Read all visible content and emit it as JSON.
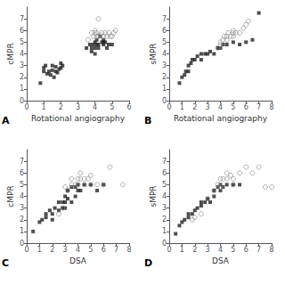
{
  "chart_data": [
    {
      "type": "scatter",
      "xlabel": "Rotational angiography",
      "ylabel": "cMPR",
      "annotation": "A",
      "xlim": [
        0,
        6
      ],
      "ylim": [
        0,
        8
      ],
      "xticks": [
        0,
        1,
        2,
        3,
        4,
        5,
        6
      ],
      "yticks": [
        0,
        1,
        2,
        3,
        4,
        5,
        6,
        7
      ],
      "series": [
        {
          "color": "#222222",
          "marker": "square",
          "x": [
            0.8,
            1.0,
            1.0,
            1.1,
            1.2,
            1.3,
            1.4,
            1.5,
            1.5,
            1.6,
            1.7,
            1.7,
            1.8,
            1.9,
            2.0,
            2.0,
            2.1,
            3.5,
            3.7,
            3.8,
            3.9,
            4.0,
            4.0,
            4.1,
            4.1,
            4.2,
            4.3,
            4.4,
            4.5,
            4.5,
            4.6,
            4.7,
            4.8,
            5.0,
            3.8,
            4.0,
            4.2,
            4.5
          ],
          "values": [
            1.5,
            2.5,
            2.8,
            3.0,
            2.3,
            2.5,
            2.2,
            2.6,
            3.0,
            2.0,
            2.5,
            2.9,
            2.4,
            2.7,
            2.8,
            3.2,
            3.0,
            4.5,
            4.8,
            4.5,
            4.8,
            5.0,
            4.5,
            5.2,
            4.8,
            4.8,
            5.5,
            5.0,
            5.2,
            4.8,
            5.0,
            4.5,
            4.8,
            4.8,
            4.2,
            4.0,
            4.5,
            5.0
          ]
        },
        {
          "color": "#888888",
          "marker": "open_circle",
          "x": [
            3.6,
            3.8,
            3.9,
            4.0,
            4.0,
            4.1,
            4.1,
            4.2,
            4.3,
            4.4,
            4.5,
            4.6,
            4.7,
            4.8,
            4.9,
            5.0,
            5.1,
            5.2,
            4.2
          ],
          "values": [
            5.2,
            5.8,
            5.5,
            5.8,
            6.0,
            5.5,
            5.8,
            5.5,
            5.6,
            5.8,
            5.5,
            5.8,
            5.5,
            5.8,
            5.5,
            5.5,
            5.8,
            6.0,
            7.0
          ]
        }
      ]
    },
    {
      "type": "scatter",
      "xlabel": "Rotational angiography",
      "ylabel": "sMPR",
      "annotation": "B",
      "xlim": [
        0,
        8
      ],
      "ylim": [
        0,
        8
      ],
      "xticks": [
        0,
        1,
        2,
        3,
        4,
        5,
        6,
        7,
        8
      ],
      "yticks": [
        0,
        1,
        2,
        3,
        4,
        5,
        6,
        7
      ],
      "series": [
        {
          "color": "#222222",
          "marker": "square",
          "x": [
            0.8,
            1.0,
            1.2,
            1.3,
            1.5,
            1.5,
            1.7,
            1.8,
            2.0,
            2.2,
            2.5,
            2.5,
            2.8,
            3.0,
            3.2,
            3.5,
            3.8,
            4.0,
            4.2,
            4.5,
            5.0,
            5.5,
            6.0,
            6.5,
            7.0
          ],
          "values": [
            1.5,
            2.0,
            2.2,
            2.5,
            2.5,
            3.0,
            3.2,
            3.5,
            3.5,
            3.8,
            3.5,
            4.0,
            4.0,
            4.0,
            4.2,
            4.0,
            4.5,
            4.5,
            4.8,
            4.8,
            5.0,
            4.8,
            5.0,
            5.2,
            7.5
          ]
        },
        {
          "color": "#888888",
          "marker": "open_circle",
          "x": [
            3.8,
            4.0,
            4.0,
            4.2,
            4.3,
            4.5,
            4.5,
            4.6,
            4.8,
            5.0,
            5.0,
            5.0,
            5.2,
            5.5,
            5.8,
            6.0,
            6.2
          ],
          "values": [
            4.5,
            4.8,
            5.0,
            5.2,
            5.5,
            5.2,
            5.5,
            5.8,
            5.5,
            5.5,
            5.8,
            6.0,
            5.8,
            5.8,
            6.2,
            6.5,
            6.8
          ]
        }
      ]
    },
    {
      "type": "scatter",
      "xlabel": "DSA",
      "ylabel": "cMPR",
      "annotation": "C",
      "xlim": [
        0,
        8
      ],
      "ylim": [
        0,
        8
      ],
      "xticks": [
        0,
        1,
        2,
        3,
        4,
        5,
        6,
        7,
        8
      ],
      "yticks": [
        0,
        1,
        2,
        3,
        4,
        5,
        6,
        7
      ],
      "series": [
        {
          "color": "#222222",
          "marker": "square",
          "x": [
            0.5,
            1.0,
            1.2,
            1.5,
            1.5,
            1.8,
            2.0,
            2.0,
            2.2,
            2.5,
            2.5,
            2.8,
            2.8,
            3.0,
            3.0,
            3.0,
            3.2,
            3.2,
            3.5,
            3.5,
            3.8,
            3.8,
            4.0,
            4.0,
            4.2,
            4.5,
            5.0,
            5.5,
            6.0
          ],
          "values": [
            1.0,
            1.8,
            2.0,
            2.2,
            2.5,
            2.8,
            2.0,
            2.5,
            3.0,
            2.8,
            3.5,
            3.0,
            3.5,
            3.0,
            3.5,
            4.0,
            3.8,
            4.5,
            3.5,
            4.8,
            4.0,
            4.8,
            4.5,
            5.0,
            4.5,
            5.0,
            5.0,
            4.5,
            5.0
          ]
        },
        {
          "color": "#888888",
          "marker": "open_circle",
          "x": [
            2.5,
            2.8,
            3.0,
            3.2,
            3.5,
            3.5,
            3.8,
            4.0,
            4.0,
            4.2,
            4.2,
            4.5,
            4.5,
            4.8,
            5.0,
            5.0,
            5.5,
            6.0,
            6.5,
            7.5
          ],
          "values": [
            2.5,
            3.0,
            4.8,
            4.5,
            5.0,
            5.5,
            5.0,
            5.0,
            5.5,
            5.5,
            6.0,
            5.0,
            5.5,
            5.5,
            5.0,
            5.8,
            5.0,
            5.0,
            6.5,
            5.0
          ]
        }
      ]
    },
    {
      "type": "scatter",
      "xlabel": "DSA",
      "ylabel": "sMPR",
      "annotation": "D",
      "xlim": [
        0,
        8
      ],
      "ylim": [
        0,
        8
      ],
      "xticks": [
        0,
        1,
        2,
        3,
        4,
        5,
        6,
        7,
        8
      ],
      "yticks": [
        0,
        1,
        2,
        3,
        4,
        5,
        6,
        7
      ],
      "series": [
        {
          "color": "#222222",
          "marker": "square",
          "x": [
            0.5,
            0.8,
            1.0,
            1.2,
            1.5,
            1.5,
            1.8,
            2.0,
            2.2,
            2.5,
            2.5,
            2.8,
            3.0,
            3.2,
            3.5,
            3.5,
            3.8,
            4.0,
            4.0,
            4.2,
            4.5,
            5.0,
            5.5
          ],
          "values": [
            0.8,
            1.5,
            1.8,
            2.0,
            2.2,
            2.5,
            2.5,
            2.8,
            3.0,
            3.2,
            3.5,
            3.5,
            3.8,
            3.5,
            4.0,
            4.5,
            4.8,
            4.5,
            5.0,
            4.8,
            5.0,
            5.0,
            5.0
          ]
        },
        {
          "color": "#888888",
          "marker": "open_circle",
          "x": [
            1.8,
            2.0,
            2.5,
            3.0,
            3.5,
            3.8,
            4.0,
            4.0,
            4.2,
            4.5,
            4.5,
            4.8,
            5.0,
            5.0,
            5.5,
            6.0,
            6.5,
            7.0,
            7.5,
            8.0
          ],
          "values": [
            2.0,
            2.2,
            2.5,
            3.8,
            4.5,
            5.0,
            4.8,
            5.5,
            5.5,
            5.5,
            6.0,
            5.8,
            5.0,
            5.5,
            6.0,
            6.5,
            6.0,
            6.5,
            4.8,
            4.8
          ]
        }
      ]
    }
  ]
}
